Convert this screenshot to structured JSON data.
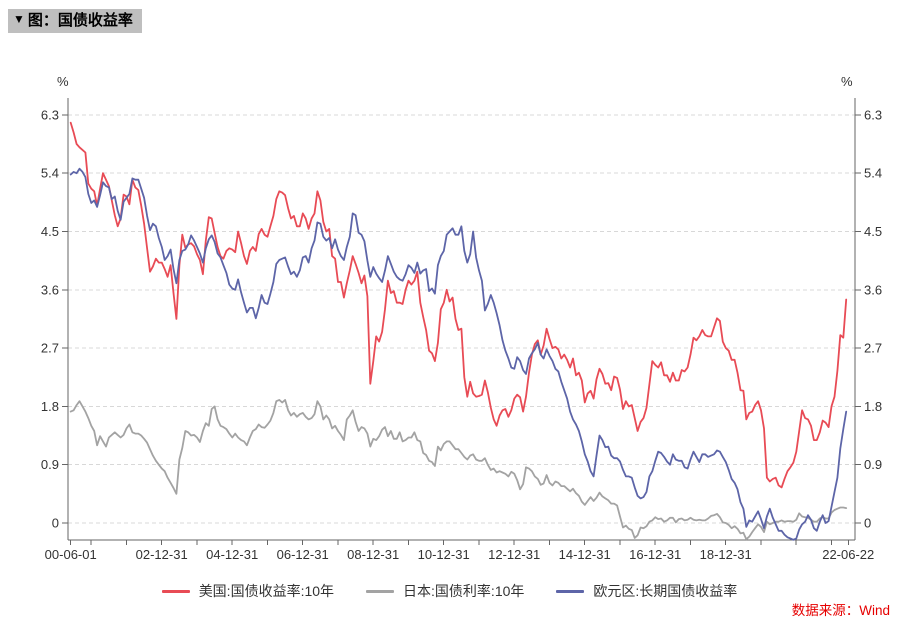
{
  "header": {
    "collapse_icon": "▼",
    "title": "图：国债收益率"
  },
  "footer": {
    "source": "数据来源：Wind"
  },
  "chart_data": {
    "type": "line",
    "title": "国债收益率",
    "unit": "%",
    "x_frequency": "monthly",
    "x_start": "2000-06",
    "x_end": "2022-06",
    "ylim": [
      -0.26,
      6.56
    ],
    "grid": true,
    "legend_position": "bottom",
    "colors": {
      "grid": "#d8d8d8",
      "axis": "#666666",
      "label": "#333333",
      "source_text": "#e60000",
      "title_bg": "#bfbfbf"
    },
    "y_ticks": [
      {
        "label": "6.3",
        "v": 6.3
      },
      {
        "label": "5.4",
        "v": 5.4
      },
      {
        "label": "4.5",
        "v": 4.5
      },
      {
        "label": "3.6",
        "v": 3.6
      },
      {
        "label": "2.7",
        "v": 2.7
      },
      {
        "label": "1.8",
        "v": 1.8
      },
      {
        "label": "0.9",
        "v": 0.9
      },
      {
        "label": "0",
        "v": 0
      }
    ],
    "x_labels": [
      {
        "label": "00-06-01",
        "m": 0
      },
      {
        "label": "02-12-31",
        "m": 30.97
      },
      {
        "label": "04-12-31",
        "m": 54.97
      },
      {
        "label": "06-12-31",
        "m": 78.97
      },
      {
        "label": "08-12-31",
        "m": 102.97
      },
      {
        "label": "10-12-31",
        "m": 126.97
      },
      {
        "label": "12-12-31",
        "m": 150.97
      },
      {
        "label": "14-12-31",
        "m": 174.97
      },
      {
        "label": "16-12-31",
        "m": 198.97
      },
      {
        "label": "18-12-31",
        "m": 222.97
      },
      {
        "label": "22-06-22",
        "m": 264.7
      }
    ],
    "x_minor_ticks_m": [
      0,
      6.97,
      18.97,
      30.97,
      42.97,
      54.97,
      66.97,
      78.97,
      90.97,
      102.97,
      114.97,
      126.97,
      138.97,
      150.97,
      162.97,
      174.97,
      186.97,
      198.97,
      210.97,
      222.97,
      234.97,
      246.97,
      258.97,
      264.7
    ],
    "series": [
      {
        "name": "美国:国债收益率:10年",
        "color": "#e84b55",
        "values": [
          6.18,
          6.03,
          5.85,
          5.8,
          5.76,
          5.72,
          5.24,
          5.16,
          5.12,
          4.9,
          5.16,
          5.4,
          5.3,
          5.2,
          4.98,
          4.75,
          4.58,
          4.7,
          5.07,
          5.04,
          4.92,
          5.3,
          5.18,
          5.14,
          4.9,
          4.62,
          4.24,
          3.88,
          3.96,
          4.08,
          4.02,
          4.02,
          3.92,
          3.8,
          3.98,
          3.55,
          3.15,
          3.98,
          4.45,
          4.25,
          4.3,
          4.32,
          4.27,
          4.15,
          4.06,
          3.84,
          4.36,
          4.72,
          4.7,
          4.48,
          4.26,
          4.12,
          4.08,
          4.2,
          4.24,
          4.22,
          4.18,
          4.5,
          4.32,
          4.12,
          4.0,
          4.2,
          4.26,
          4.2,
          4.46,
          4.54,
          4.45,
          4.42,
          4.58,
          4.74,
          5.0,
          5.12,
          5.1,
          5.06,
          4.86,
          4.7,
          4.74,
          4.58,
          4.58,
          4.78,
          4.7,
          4.54,
          4.7,
          4.78,
          5.12,
          4.98,
          4.65,
          4.5,
          4.54,
          4.12,
          4.08,
          3.72,
          3.72,
          3.48,
          3.7,
          3.9,
          4.12,
          4.0,
          3.86,
          3.7,
          3.82,
          3.5,
          2.15,
          2.5,
          2.88,
          2.8,
          2.95,
          3.3,
          3.74,
          3.55,
          3.58,
          3.4,
          3.4,
          3.38,
          3.6,
          3.74,
          3.68,
          3.74,
          3.88,
          3.4,
          3.18,
          2.98,
          2.66,
          2.62,
          2.5,
          2.78,
          3.3,
          3.4,
          3.6,
          3.42,
          3.48,
          3.15,
          2.98,
          3.0,
          2.25,
          1.95,
          2.18,
          2.0,
          1.95,
          1.96,
          1.98,
          2.2,
          2.02,
          1.78,
          1.6,
          1.5,
          1.66,
          1.74,
          1.76,
          1.64,
          1.74,
          1.92,
          1.98,
          1.94,
          1.72,
          1.95,
          2.32,
          2.6,
          2.76,
          2.82,
          2.6,
          2.74,
          3.0,
          2.84,
          2.7,
          2.72,
          2.68,
          2.54,
          2.6,
          2.52,
          2.4,
          2.54,
          2.28,
          2.32,
          2.2,
          1.86,
          2.0,
          2.04,
          1.92,
          2.22,
          2.38,
          2.3,
          2.15,
          2.16,
          2.05,
          2.26,
          2.24,
          2.06,
          1.76,
          1.88,
          1.8,
          1.82,
          1.62,
          1.42,
          1.56,
          1.62,
          1.78,
          2.14,
          2.5,
          2.44,
          2.4,
          2.48,
          2.28,
          2.28,
          2.18,
          2.32,
          2.2,
          2.2,
          2.36,
          2.34,
          2.4,
          2.6,
          2.86,
          2.82,
          2.88,
          2.98,
          2.9,
          2.88,
          2.88,
          3.02,
          3.16,
          3.12,
          2.8,
          2.7,
          2.66,
          2.52,
          2.52,
          2.32,
          2.05,
          2.04,
          1.6,
          1.7,
          1.72,
          1.82,
          1.88,
          1.74,
          1.46,
          0.7,
          0.64,
          0.68,
          0.7,
          0.58,
          0.55,
          0.68,
          0.8,
          0.86,
          0.93,
          1.1,
          1.42,
          1.74,
          1.62,
          1.6,
          1.5,
          1.28,
          1.28,
          1.4,
          1.58,
          1.55,
          1.48,
          1.8,
          1.95,
          2.35,
          2.9,
          2.86,
          3.45
        ]
      },
      {
        "name": "日本:国债利率:10年",
        "color": "#a3a3a3",
        "values": [
          1.72,
          1.74,
          1.82,
          1.88,
          1.8,
          1.72,
          1.62,
          1.5,
          1.42,
          1.2,
          1.34,
          1.26,
          1.18,
          1.32,
          1.36,
          1.4,
          1.36,
          1.32,
          1.36,
          1.46,
          1.52,
          1.4,
          1.38,
          1.38,
          1.35,
          1.3,
          1.24,
          1.14,
          1.04,
          0.96,
          0.9,
          0.84,
          0.8,
          0.7,
          0.62,
          0.54,
          0.45,
          0.98,
          1.16,
          1.42,
          1.4,
          1.35,
          1.36,
          1.32,
          1.25,
          1.42,
          1.54,
          1.5,
          1.76,
          1.8,
          1.6,
          1.5,
          1.48,
          1.45,
          1.38,
          1.32,
          1.38,
          1.32,
          1.28,
          1.26,
          1.2,
          1.32,
          1.42,
          1.45,
          1.52,
          1.48,
          1.47,
          1.52,
          1.58,
          1.7,
          1.88,
          1.9,
          1.86,
          1.9,
          1.74,
          1.66,
          1.7,
          1.64,
          1.68,
          1.7,
          1.64,
          1.6,
          1.62,
          1.68,
          1.88,
          1.8,
          1.6,
          1.66,
          1.6,
          1.46,
          1.5,
          1.42,
          1.36,
          1.28,
          1.6,
          1.66,
          1.74,
          1.56,
          1.42,
          1.48,
          1.46,
          1.38,
          1.18,
          1.3,
          1.28,
          1.34,
          1.44,
          1.48,
          1.34,
          1.42,
          1.3,
          1.3,
          1.4,
          1.26,
          1.28,
          1.32,
          1.32,
          1.4,
          1.28,
          1.26,
          1.08,
          1.05,
          0.96,
          0.94,
          0.88,
          1.18,
          1.12,
          1.22,
          1.26,
          1.26,
          1.2,
          1.14,
          1.14,
          1.08,
          1.02,
          0.98,
          1.04,
          1.06,
          0.98,
          0.96,
          0.96,
          1.0,
          0.9,
          0.82,
          0.84,
          0.78,
          0.8,
          0.78,
          0.76,
          0.72,
          0.79,
          0.76,
          0.66,
          0.52,
          0.6,
          0.86,
          0.84,
          0.8,
          0.72,
          0.68,
          0.59,
          0.61,
          0.74,
          0.62,
          0.58,
          0.64,
          0.62,
          0.57,
          0.57,
          0.53,
          0.49,
          0.53,
          0.46,
          0.42,
          0.33,
          0.28,
          0.34,
          0.4,
          0.34,
          0.39,
          0.47,
          0.41,
          0.38,
          0.35,
          0.3,
          0.3,
          0.27,
          0.1,
          -0.07,
          -0.04,
          -0.09,
          -0.11,
          -0.23,
          -0.19,
          -0.07,
          -0.08,
          -0.05,
          0.02,
          0.04,
          0.09,
          0.06,
          0.07,
          0.02,
          0.04,
          0.08,
          0.08,
          0.01,
          0.06,
          0.07,
          0.04,
          0.05,
          0.08,
          0.05,
          0.04,
          0.05,
          0.04,
          0.04,
          0.07,
          0.11,
          0.12,
          0.14,
          0.09,
          0.01,
          0.0,
          -0.03,
          -0.08,
          -0.05,
          -0.09,
          -0.16,
          -0.15,
          -0.25,
          -0.21,
          -0.14,
          -0.08,
          -0.02,
          -0.06,
          -0.14,
          0.02,
          -0.02,
          0.0,
          0.02,
          0.02,
          0.04,
          0.02,
          0.03,
          0.03,
          0.02,
          0.05,
          0.15,
          0.1,
          0.09,
          0.08,
          0.05,
          0.02,
          0.02,
          0.07,
          0.09,
          0.07,
          0.07,
          0.16,
          0.2,
          0.22,
          0.24,
          0.24,
          0.23
        ]
      },
      {
        "name": "欧元区:长期国债收益率",
        "color": "#5d65a8",
        "values": [
          5.38,
          5.42,
          5.4,
          5.47,
          5.42,
          5.34,
          5.08,
          4.94,
          4.98,
          4.88,
          5.06,
          5.26,
          5.2,
          5.18,
          5.0,
          5.04,
          4.82,
          4.68,
          4.96,
          5.02,
          5.08,
          5.32,
          5.3,
          5.3,
          5.16,
          5.02,
          4.74,
          4.52,
          4.62,
          4.58,
          4.4,
          4.26,
          4.06,
          4.12,
          4.22,
          3.92,
          3.7,
          4.06,
          4.2,
          4.22,
          4.3,
          4.44,
          4.36,
          4.26,
          4.16,
          4.02,
          4.24,
          4.38,
          4.44,
          4.34,
          4.16,
          4.1,
          3.98,
          3.86,
          3.68,
          3.62,
          3.6,
          3.76,
          3.56,
          3.4,
          3.25,
          3.32,
          3.32,
          3.16,
          3.32,
          3.52,
          3.4,
          3.38,
          3.54,
          3.72,
          4.0,
          4.06,
          4.08,
          4.1,
          3.96,
          3.84,
          3.88,
          3.8,
          3.9,
          4.1,
          4.12,
          4.02,
          4.24,
          4.36,
          4.64,
          4.62,
          4.42,
          4.36,
          4.4,
          4.24,
          4.38,
          4.22,
          4.12,
          4.06,
          4.26,
          4.42,
          4.78,
          4.75,
          4.48,
          4.45,
          4.35,
          4.05,
          3.8,
          3.95,
          3.85,
          3.78,
          3.72,
          3.9,
          4.12,
          4.0,
          3.88,
          3.8,
          3.76,
          3.74,
          3.84,
          3.98,
          3.94,
          3.86,
          4.02,
          3.85,
          3.9,
          3.92,
          3.58,
          3.62,
          3.54,
          3.98,
          4.12,
          4.2,
          4.45,
          4.5,
          4.55,
          4.45,
          4.45,
          4.58,
          4.2,
          4.02,
          4.15,
          4.5,
          4.1,
          3.9,
          3.74,
          3.28,
          3.38,
          3.52,
          3.4,
          3.24,
          3.05,
          2.82,
          2.66,
          2.54,
          2.4,
          2.38,
          2.56,
          2.5,
          2.36,
          2.3,
          2.54,
          2.62,
          2.68,
          2.78,
          2.6,
          2.54,
          2.68,
          2.58,
          2.5,
          2.38,
          2.34,
          2.18,
          2.05,
          1.92,
          1.72,
          1.6,
          1.52,
          1.42,
          1.26,
          1.06,
          0.95,
          0.8,
          0.72,
          1.04,
          1.35,
          1.28,
          1.17,
          1.18,
          1.04,
          1.0,
          1.0,
          0.95,
          0.82,
          0.72,
          0.72,
          0.7,
          0.55,
          0.42,
          0.38,
          0.4,
          0.48,
          0.72,
          0.8,
          0.96,
          1.1,
          1.08,
          1.02,
          0.95,
          0.9,
          1.06,
          0.98,
          0.96,
          0.96,
          0.86,
          0.84,
          0.98,
          1.1,
          1.02,
          0.94,
          1.06,
          1.06,
          1.02,
          1.04,
          1.06,
          1.12,
          1.1,
          1.02,
          0.94,
          0.82,
          0.68,
          0.62,
          0.52,
          0.32,
          0.22,
          -0.06,
          0.04,
          0.02,
          0.1,
          0.18,
          0.06,
          -0.08,
          0.1,
          0.22,
          0.08,
          -0.02,
          -0.12,
          -0.12,
          -0.18,
          -0.22,
          -0.24,
          -0.26,
          -0.24,
          -0.1,
          -0.02,
          0.02,
          0.12,
          0.05,
          -0.08,
          -0.12,
          0.02,
          0.12,
          0.0,
          0.03,
          0.25,
          0.48,
          0.7,
          1.15,
          1.45,
          1.72
        ]
      }
    ]
  }
}
